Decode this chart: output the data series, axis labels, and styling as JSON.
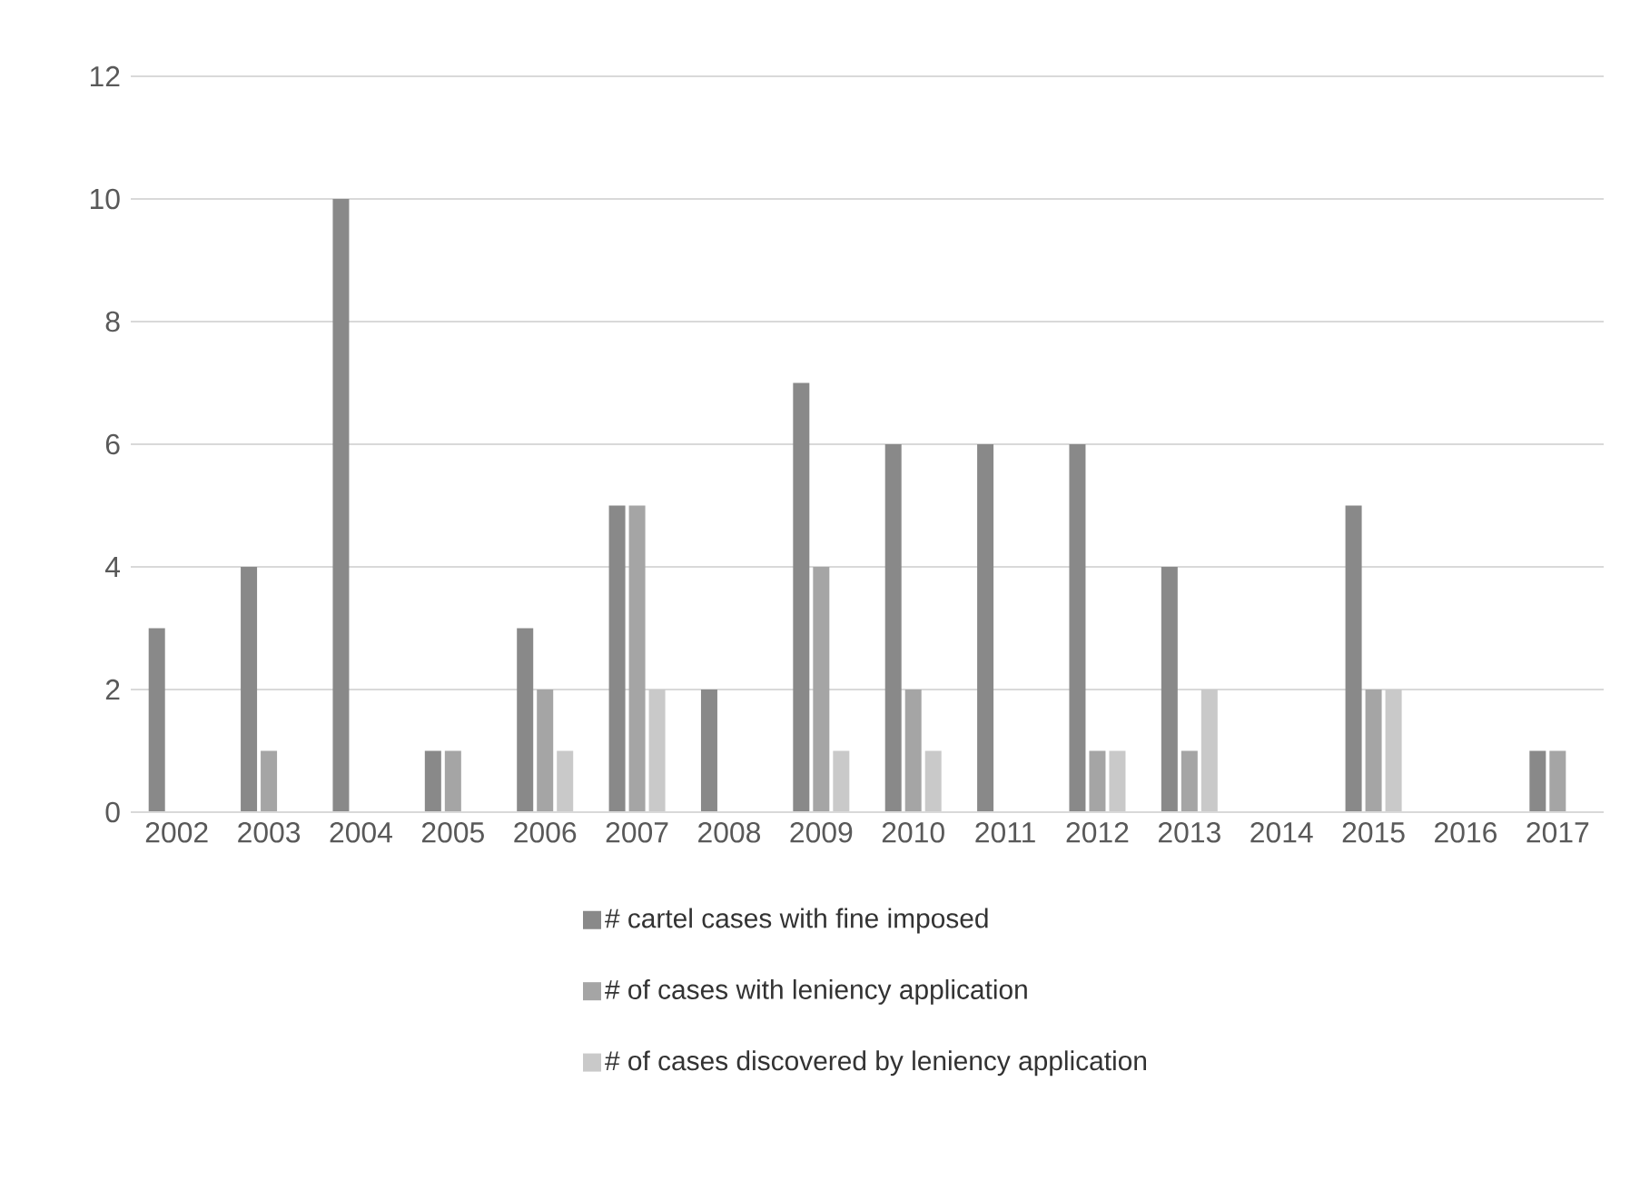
{
  "chart_data": {
    "type": "bar",
    "categories": [
      "2002",
      "2003",
      "2004",
      "2005",
      "2006",
      "2007",
      "2008",
      "2009",
      "2010",
      "2011",
      "2012",
      "2013",
      "2014",
      "2015",
      "2016",
      "2017"
    ],
    "series": [
      {
        "name": "# cartel cases with fine imposed",
        "color": "#898989",
        "values": [
          3,
          4,
          10,
          1,
          3,
          5,
          2,
          7,
          6,
          6,
          6,
          4,
          0,
          5,
          0,
          1
        ]
      },
      {
        "name": "# of cases with leniency application",
        "color": "#a5a5a5",
        "values": [
          0,
          1,
          0,
          1,
          2,
          5,
          0,
          4,
          2,
          0,
          1,
          1,
          0,
          2,
          0,
          1
        ]
      },
      {
        "name": "# of cases discovered by leniency application",
        "color": "#c9c9c9",
        "values": [
          0,
          0,
          0,
          0,
          1,
          2,
          0,
          1,
          1,
          0,
          1,
          2,
          0,
          2,
          0,
          0
        ]
      }
    ],
    "ylim": [
      0,
      12
    ],
    "yticks": [
      0,
      2,
      4,
      6,
      8,
      10,
      12
    ],
    "grid": "y",
    "legend": "bottom"
  }
}
